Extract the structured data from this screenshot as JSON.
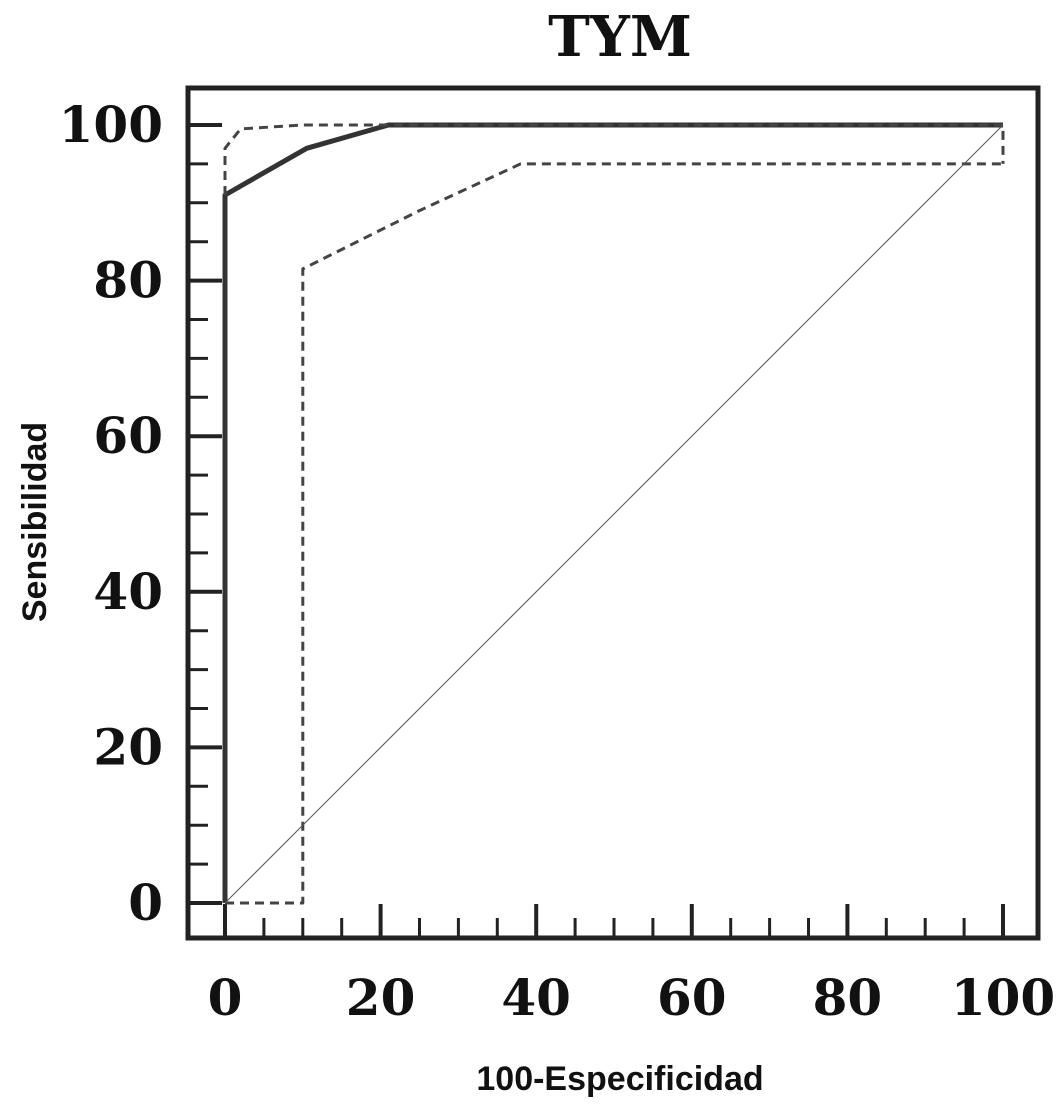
{
  "chart_data": {
    "type": "line",
    "title": "TYM",
    "xlabel": "100-Especificidad",
    "ylabel": "Sensibilidad",
    "xlim": [
      0,
      100
    ],
    "ylim": [
      0,
      100
    ],
    "x_ticks": [
      0,
      20,
      40,
      60,
      80,
      100
    ],
    "y_ticks": [
      0,
      20,
      40,
      60,
      80,
      100
    ],
    "grid": false,
    "series": [
      {
        "style": "solid-thick",
        "color": "#333333",
        "points": [
          [
            0,
            0
          ],
          [
            0,
            91
          ],
          [
            10.5,
            97
          ],
          [
            21,
            100
          ],
          [
            100,
            100
          ]
        ]
      },
      {
        "style": "dashed",
        "color": "#444444",
        "points": [
          [
            0,
            91
          ],
          [
            0,
            97
          ],
          [
            2,
            99.5
          ],
          [
            10,
            100
          ],
          [
            100,
            100
          ],
          [
            100,
            95
          ]
        ]
      },
      {
        "style": "dashed",
        "color": "#444444",
        "points": [
          [
            0,
            0
          ],
          [
            10,
            0
          ],
          [
            10,
            81.5
          ],
          [
            25,
            89
          ],
          [
            38,
            95
          ],
          [
            100,
            95
          ]
        ]
      },
      {
        "style": "diagonal",
        "color": "#555555",
        "points": [
          [
            0,
            0
          ],
          [
            100,
            100
          ]
        ]
      }
    ]
  }
}
